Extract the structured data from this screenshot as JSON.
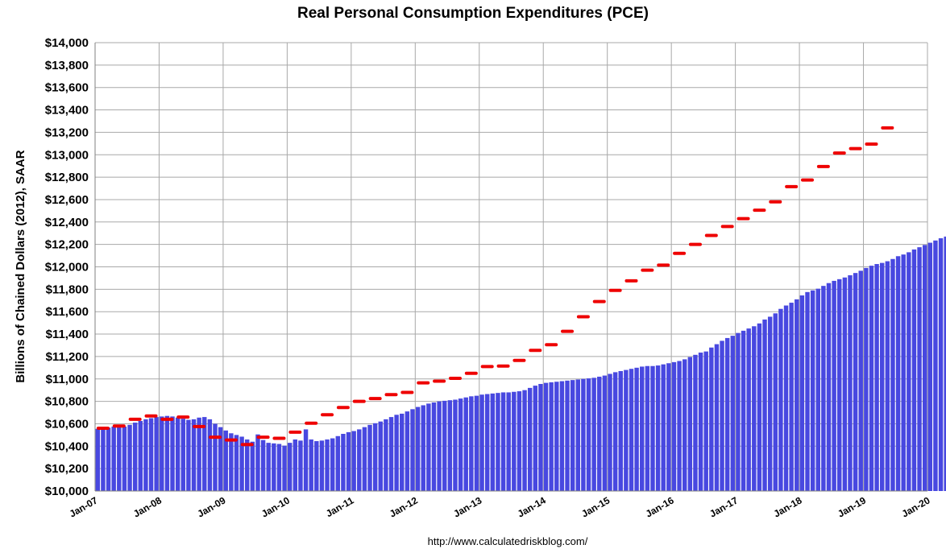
{
  "chart_data": {
    "type": "bar",
    "title": "Real Personal Consumption Expenditures (PCE)",
    "ylabel": "Billions of Chained Dollars (2012), SAAR",
    "xlabel": "",
    "source": "http://www.calculatedriskblog.com/",
    "ylim": [
      10000,
      14000
    ],
    "y_tick_labels": [
      "$10,000",
      "$10,200",
      "$10,400",
      "$10,600",
      "$10,800",
      "$11,000",
      "$11,200",
      "$11,400",
      "$11,600",
      "$11,800",
      "$12,000",
      "$12,200",
      "$12,400",
      "$12,600",
      "$12,800",
      "$13,000",
      "$13,200",
      "$13,400",
      "$13,600",
      "$13,800",
      "$14,000"
    ],
    "x_tick_labels": [
      "Jan-07",
      "Jan-08",
      "Jan-09",
      "Jan-10",
      "Jan-11",
      "Jan-12",
      "Jan-13",
      "Jan-14",
      "Jan-15",
      "Jan-16",
      "Jan-17",
      "Jan-18",
      "Jan-19",
      "Jan-20"
    ],
    "grid": true,
    "bar_color": "#4848e0",
    "quarter_marker_color": "#ee0000",
    "series": [
      {
        "name": "Monthly PCE",
        "start": "2007-01",
        "values": [
          10555,
          10560,
          10565,
          10575,
          10580,
          10575,
          10590,
          10610,
          10625,
          10640,
          10650,
          10660,
          10665,
          10670,
          10665,
          10655,
          10645,
          10635,
          10640,
          10655,
          10660,
          10640,
          10600,
          10570,
          10540,
          10515,
          10500,
          10485,
          10460,
          10440,
          10505,
          10455,
          10430,
          10425,
          10420,
          10405,
          10430,
          10460,
          10450,
          10550,
          10460,
          10445,
          10450,
          10460,
          10470,
          10490,
          10510,
          10525,
          10535,
          10550,
          10570,
          10590,
          10605,
          10620,
          10640,
          10660,
          10680,
          10690,
          10710,
          10730,
          10750,
          10765,
          10780,
          10790,
          10800,
          10805,
          10810,
          10815,
          10825,
          10835,
          10845,
          10850,
          10860,
          10865,
          10870,
          10875,
          10880,
          10880,
          10885,
          10890,
          10900,
          10920,
          10940,
          10955,
          10965,
          10970,
          10975,
          10980,
          10985,
          10990,
          10995,
          11000,
          11005,
          11010,
          11020,
          11030,
          11045,
          11060,
          11070,
          11080,
          11090,
          11100,
          11110,
          11115,
          11115,
          11120,
          11130,
          11140,
          11150,
          11160,
          11175,
          11195,
          11215,
          11235,
          11245,
          11280,
          11310,
          11340,
          11365,
          11385,
          11410,
          11430,
          11450,
          11470,
          11495,
          11530,
          11555,
          11585,
          11625,
          11655,
          11680,
          11710,
          11745,
          11775,
          11790,
          11805,
          11830,
          11855,
          11875,
          11890,
          11905,
          11925,
          11945,
          11965,
          11990,
          12010,
          12025,
          12035,
          12050,
          12070,
          12095,
          12110,
          12130,
          12155,
          12175,
          12195,
          12215,
          12235,
          12255,
          12270,
          12290,
          12310,
          12325,
          12345,
          12365,
          12385,
          12410,
          12420,
          12440,
          12455,
          12465,
          12480,
          12495,
          12510,
          12525,
          12540,
          12555,
          12570,
          12590,
          12615,
          12645,
          12670,
          12695,
          12720,
          12740,
          12760,
          12775,
          12790,
          12800,
          12825,
          12855,
          12880,
          12905,
          12935,
          12955,
          12985,
          13010,
          13035,
          13055,
          13075,
          13095,
          13110,
          13120,
          12985,
          13080,
          13060,
          13100,
          13155,
          13195,
          13220,
          13240,
          13265
        ]
      },
      {
        "name": "Quarterly PCE",
        "start": "2007-Q1",
        "values": [
          10560,
          10580,
          10640,
          10670,
          10640,
          10660,
          10575,
          10480,
          10455,
          10415,
          10480,
          10470,
          10525,
          10605,
          10680,
          10745,
          10800,
          10825,
          10860,
          10880,
          10965,
          10980,
          11005,
          11050,
          11110,
          11115,
          11165,
          11255,
          11305,
          11425,
          11555,
          11690,
          11790,
          11875,
          11970,
          12015,
          12120,
          12200,
          12280,
          12360,
          12430,
          12505,
          12580,
          12715,
          12775,
          12895,
          13015,
          13055,
          13095,
          13240
        ]
      }
    ]
  }
}
